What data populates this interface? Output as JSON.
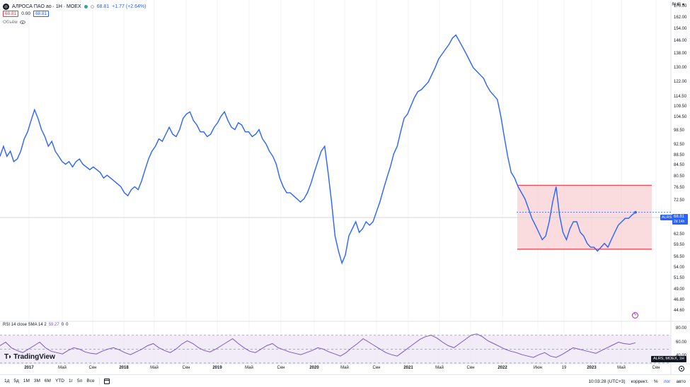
{
  "header": {
    "title": "АЛРОСА ПАО ао · 1Н · MOEX",
    "price": "68.81",
    "change": "+1.77 (+2.64%)",
    "sell": "68.81",
    "spread": "0.00",
    "buy": "68.81",
    "volume_label": "Объём",
    "currency": "RUB"
  },
  "price_axis": {
    "ticks": [
      "170.00",
      "162.00",
      "154.00",
      "146.00",
      "138.00",
      "130.00",
      "122.00",
      "114.50",
      "109.50",
      "104.50",
      "98.50",
      "92.50",
      "88.50",
      "84.50",
      "80.50",
      "76.50",
      "72.50",
      "65.50",
      "62.50",
      "59.50",
      "56.50",
      "54.00",
      "51.50",
      "49.00",
      "46.80",
      "44.60"
    ],
    "last_symbol": "ALRS",
    "last_price": "68.81",
    "countdown": "2d 14h"
  },
  "rsi": {
    "label": "RSI 14 close SMA 14 2",
    "value": "59.27",
    "extra1": "0",
    "extra2": "0",
    "ticks": [
      "80.00",
      "60.00",
      "40.00"
    ],
    "symbol_tag": "ALRS, MOEX, 1Н"
  },
  "watermark": "TradingView",
  "time_axis": [
    {
      "label": "2017",
      "bold": true
    },
    {
      "label": "Май",
      "bold": false
    },
    {
      "label": "Сен",
      "bold": false
    },
    {
      "label": "2018",
      "bold": true
    },
    {
      "label": "Май",
      "bold": false
    },
    {
      "label": "Сен",
      "bold": false
    },
    {
      "label": "2019",
      "bold": true
    },
    {
      "label": "Май",
      "bold": false
    },
    {
      "label": "Сен",
      "bold": false
    },
    {
      "label": "2020",
      "bold": true
    },
    {
      "label": "Май",
      "bold": false
    },
    {
      "label": "Сен",
      "bold": false
    },
    {
      "label": "2021",
      "bold": true
    },
    {
      "label": "Май",
      "bold": false
    },
    {
      "label": "Сен",
      "bold": false
    },
    {
      "label": "2022",
      "bold": true
    },
    {
      "label": "Июн",
      "bold": false
    },
    {
      "label": "19",
      "bold": false
    },
    {
      "label": "2023",
      "bold": true
    },
    {
      "label": "Май",
      "bold": false
    },
    {
      "label": "Сен",
      "bold": false
    }
  ],
  "toolbar": {
    "timeframes": [
      "1д",
      "5д",
      "1М",
      "3М",
      "6М",
      "YTD",
      "1г",
      "5л",
      "Все"
    ],
    "time": "10:03:28 (UTC+3)",
    "adjust": "коррект.",
    "percent": "%",
    "log": "лог",
    "auto": "авто"
  },
  "colors": {
    "line": "#2962ff",
    "zone_fill": "#f8d0d3",
    "zone_border": "#f23645",
    "rsi_line": "#7e57c2",
    "rsi_band": "#ede7f6"
  },
  "annotation": {
    "type": "rectangle",
    "top_price": 77.5,
    "bottom_price": 58.5
  },
  "chart_data": {
    "type": "line",
    "series": [
      {
        "name": "ALRS",
        "values": [
          88,
          92,
          88,
          90,
          86,
          87,
          90,
          95,
          98,
          103,
          108,
          104,
          99,
          96,
          92,
          94,
          90,
          88,
          86,
          85,
          86,
          84,
          86,
          87,
          85,
          84,
          83,
          84,
          83,
          82,
          80,
          81,
          80,
          79,
          78,
          77,
          75,
          74,
          76,
          77,
          76,
          79,
          83,
          87,
          90,
          92,
          95,
          94,
          97,
          100,
          97,
          96,
          99,
          104,
          106,
          107,
          103,
          101,
          98,
          98,
          96,
          97,
          100,
          102,
          105,
          107,
          103,
          100,
          99,
          102,
          101,
          98,
          98,
          96,
          97,
          99,
          95,
          93,
          90,
          88,
          85,
          80,
          77,
          75,
          75,
          74,
          73,
          72,
          73,
          75,
          78,
          82,
          86,
          90,
          92,
          82,
          72,
          62,
          58,
          55,
          57,
          62,
          64,
          66,
          63,
          64,
          66,
          65,
          66,
          69,
          72,
          76,
          80,
          84,
          89,
          92,
          98,
          104,
          106,
          110,
          114,
          117,
          118,
          120,
          122,
          126,
          130,
          135,
          138,
          141,
          144,
          148,
          150,
          146,
          142,
          138,
          134,
          130,
          128,
          126,
          124,
          120,
          117,
          115,
          113,
          105,
          96,
          88,
          82,
          80,
          77,
          75,
          73,
          70,
          67,
          65,
          63,
          61,
          62,
          66,
          72,
          77,
          68,
          63,
          61,
          64,
          66,
          66,
          63,
          62,
          60,
          59,
          59,
          58,
          59,
          60,
          59,
          61,
          63,
          65,
          66,
          67,
          67,
          68,
          68.81
        ]
      }
    ],
    "rsi_values": [
      55,
      60,
      52,
      48,
      45,
      50,
      55,
      60,
      52,
      47,
      45,
      43,
      48,
      52,
      50,
      46,
      44,
      43,
      47,
      50,
      52,
      49,
      45,
      42,
      46,
      50,
      55,
      58,
      52,
      48,
      45,
      50,
      57,
      62,
      58,
      52,
      48,
      46,
      50,
      55,
      60,
      65,
      58,
      52,
      47,
      45,
      50,
      55,
      58,
      52,
      49,
      46,
      44,
      42,
      45,
      48,
      52,
      50,
      46,
      43,
      40,
      45,
      52,
      58,
      65,
      60,
      55,
      50,
      45,
      42,
      40,
      46,
      52,
      58,
      64,
      68,
      70,
      66,
      60,
      55,
      52,
      58,
      64,
      70,
      72,
      68,
      62,
      58,
      54,
      50,
      47,
      45,
      42,
      40,
      38,
      42,
      45,
      40,
      38,
      42,
      47,
      52,
      50,
      48,
      46,
      44,
      48,
      52,
      56,
      60,
      58,
      57,
      59.27
    ],
    "ylim": [
      44.6,
      170
    ],
    "x_start": "2017",
    "x_end": "2023"
  }
}
